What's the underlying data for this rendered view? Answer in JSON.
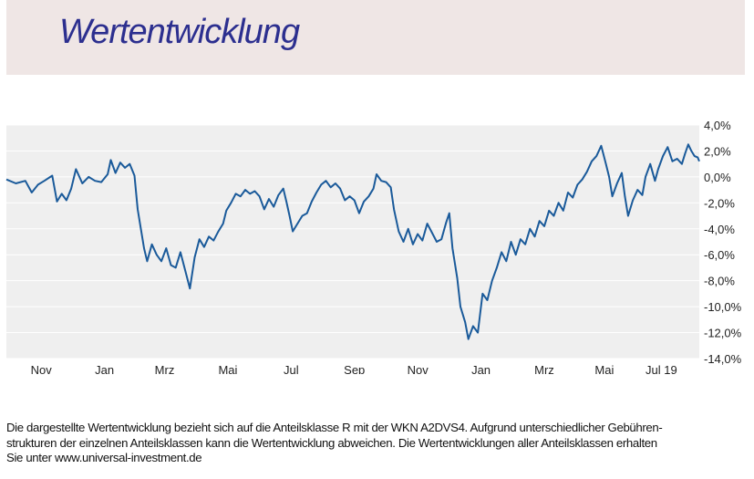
{
  "header": {
    "title": "Wertentwicklung"
  },
  "footnote": {
    "line1": "Die dargestellte Wertentwicklung bezieht sich auf die Anteilsklasse R mit der WKN A2DVS4. Aufgrund unterschiedlicher Gebühren-",
    "line2": "strukturen der einzelnen Anteilsklassen kann die Wertentwicklung abweichen. Die Wertentwicklungen aller Anteilsklassen erhalten",
    "line3": "Sie unter www.universal-investment.de"
  },
  "chart_data": {
    "type": "line",
    "title": "",
    "xlabel": "",
    "ylabel": "",
    "ylim": [
      -14,
      4
    ],
    "yticks": [
      4,
      2,
      0,
      -2,
      -4,
      -6,
      -8,
      -10,
      -12,
      -14
    ],
    "ytick_labels": [
      "4,0%",
      "2,0%",
      "0,0%",
      "-2,0%",
      "-4,0%",
      "-6,0%",
      "-8,0%",
      "-10,0%",
      "-12,0%",
      "-14,0%"
    ],
    "xtick_labels": [
      "Nov",
      "Jan",
      "Mrz",
      "Mai",
      "Jul",
      "Sep",
      "Nov",
      "Jan",
      "Mrz",
      "Mai",
      "Jul 19"
    ],
    "xtick_pos": [
      1.1,
      3.1,
      5.0,
      7.0,
      9.0,
      11.0,
      13.0,
      15.0,
      17.0,
      18.9,
      20.7
    ],
    "xlim": [
      0,
      21.9
    ],
    "grid": true,
    "color": "#1a5a9a",
    "series": [
      {
        "values": [
          [
            0.0,
            -0.2
          ],
          [
            0.3,
            -0.5
          ],
          [
            0.6,
            -0.3
          ],
          [
            0.8,
            -1.2
          ],
          [
            1.0,
            -0.6
          ],
          [
            1.2,
            -0.3
          ],
          [
            1.45,
            0.1
          ],
          [
            1.6,
            -1.9
          ],
          [
            1.75,
            -1.3
          ],
          [
            1.9,
            -1.8
          ],
          [
            2.05,
            -0.9
          ],
          [
            2.2,
            0.6
          ],
          [
            2.4,
            -0.5
          ],
          [
            2.6,
            0.0
          ],
          [
            2.8,
            -0.3
          ],
          [
            3.0,
            -0.4
          ],
          [
            3.2,
            0.2
          ],
          [
            3.3,
            1.3
          ],
          [
            3.45,
            0.3
          ],
          [
            3.6,
            1.1
          ],
          [
            3.75,
            0.7
          ],
          [
            3.9,
            1.0
          ],
          [
            4.05,
            0.1
          ],
          [
            4.15,
            -2.5
          ],
          [
            4.25,
            -4.0
          ],
          [
            4.35,
            -5.5
          ],
          [
            4.45,
            -6.5
          ],
          [
            4.6,
            -5.2
          ],
          [
            4.75,
            -6.0
          ],
          [
            4.9,
            -6.5
          ],
          [
            5.05,
            -5.5
          ],
          [
            5.2,
            -6.8
          ],
          [
            5.35,
            -7.0
          ],
          [
            5.5,
            -5.8
          ],
          [
            5.65,
            -7.2
          ],
          [
            5.8,
            -8.6
          ],
          [
            5.95,
            -6.2
          ],
          [
            6.1,
            -4.8
          ],
          [
            6.25,
            -5.4
          ],
          [
            6.4,
            -4.6
          ],
          [
            6.55,
            -4.9
          ],
          [
            6.7,
            -4.2
          ],
          [
            6.85,
            -3.6
          ],
          [
            6.95,
            -2.6
          ],
          [
            7.1,
            -2.0
          ],
          [
            7.25,
            -1.3
          ],
          [
            7.4,
            -1.5
          ],
          [
            7.55,
            -1.0
          ],
          [
            7.7,
            -1.3
          ],
          [
            7.85,
            -1.1
          ],
          [
            8.0,
            -1.5
          ],
          [
            8.15,
            -2.5
          ],
          [
            8.3,
            -1.7
          ],
          [
            8.45,
            -2.3
          ],
          [
            8.6,
            -1.4
          ],
          [
            8.75,
            -0.9
          ],
          [
            8.85,
            -1.9
          ],
          [
            8.95,
            -3.0
          ],
          [
            9.05,
            -4.2
          ],
          [
            9.2,
            -3.6
          ],
          [
            9.35,
            -3.0
          ],
          [
            9.5,
            -2.8
          ],
          [
            9.65,
            -1.9
          ],
          [
            9.8,
            -1.2
          ],
          [
            9.95,
            -0.6
          ],
          [
            10.1,
            -0.3
          ],
          [
            10.25,
            -0.8
          ],
          [
            10.4,
            -0.5
          ],
          [
            10.55,
            -0.9
          ],
          [
            10.7,
            -1.8
          ],
          [
            10.85,
            -1.5
          ],
          [
            11.0,
            -1.8
          ],
          [
            11.15,
            -2.8
          ],
          [
            11.3,
            -1.9
          ],
          [
            11.45,
            -1.5
          ],
          [
            11.6,
            -0.9
          ],
          [
            11.7,
            0.2
          ],
          [
            11.85,
            -0.3
          ],
          [
            12.0,
            -0.4
          ],
          [
            12.15,
            -0.8
          ],
          [
            12.25,
            -2.5
          ],
          [
            12.4,
            -4.2
          ],
          [
            12.55,
            -5.0
          ],
          [
            12.7,
            -4.0
          ],
          [
            12.85,
            -5.2
          ],
          [
            13.0,
            -4.4
          ],
          [
            13.15,
            -4.9
          ],
          [
            13.3,
            -3.6
          ],
          [
            13.45,
            -4.3
          ],
          [
            13.6,
            -5.0
          ],
          [
            13.75,
            -4.8
          ],
          [
            13.9,
            -3.5
          ],
          [
            14.0,
            -2.8
          ],
          [
            14.1,
            -5.5
          ],
          [
            14.25,
            -7.8
          ],
          [
            14.35,
            -10.0
          ],
          [
            14.5,
            -11.2
          ],
          [
            14.6,
            -12.5
          ],
          [
            14.75,
            -11.5
          ],
          [
            14.9,
            -12.0
          ],
          [
            15.05,
            -9.0
          ],
          [
            15.2,
            -9.5
          ],
          [
            15.35,
            -8.0
          ],
          [
            15.5,
            -7.0
          ],
          [
            15.65,
            -5.8
          ],
          [
            15.8,
            -6.5
          ],
          [
            15.95,
            -5.0
          ],
          [
            16.1,
            -6.0
          ],
          [
            16.25,
            -4.8
          ],
          [
            16.4,
            -5.2
          ],
          [
            16.55,
            -4.0
          ],
          [
            16.7,
            -4.6
          ],
          [
            16.85,
            -3.4
          ],
          [
            17.0,
            -3.8
          ],
          [
            17.15,
            -2.6
          ],
          [
            17.3,
            -3.0
          ],
          [
            17.45,
            -2.0
          ],
          [
            17.6,
            -2.6
          ],
          [
            17.75,
            -1.2
          ],
          [
            17.9,
            -1.6
          ],
          [
            18.05,
            -0.6
          ],
          [
            18.2,
            -0.2
          ],
          [
            18.35,
            0.4
          ],
          [
            18.5,
            1.2
          ],
          [
            18.65,
            1.6
          ],
          [
            18.8,
            2.4
          ],
          [
            18.95,
            1.0
          ],
          [
            19.05,
            0.0
          ],
          [
            19.15,
            -1.5
          ],
          [
            19.3,
            -0.5
          ],
          [
            19.45,
            0.3
          ],
          [
            19.55,
            -1.5
          ],
          [
            19.65,
            -3.0
          ],
          [
            19.8,
            -1.8
          ],
          [
            19.95,
            -1.0
          ],
          [
            20.1,
            -1.4
          ],
          [
            20.2,
            0.0
          ],
          [
            20.35,
            1.0
          ],
          [
            20.5,
            -0.3
          ],
          [
            20.6,
            0.6
          ],
          [
            20.75,
            1.6
          ],
          [
            20.9,
            2.3
          ],
          [
            21.05,
            1.2
          ],
          [
            21.2,
            1.4
          ],
          [
            21.35,
            1.0
          ],
          [
            21.45,
            1.8
          ],
          [
            21.55,
            2.5
          ],
          [
            21.65,
            2.0
          ],
          [
            21.75,
            1.6
          ],
          [
            21.85,
            1.5
          ],
          [
            21.9,
            1.2
          ]
        ]
      }
    ]
  }
}
